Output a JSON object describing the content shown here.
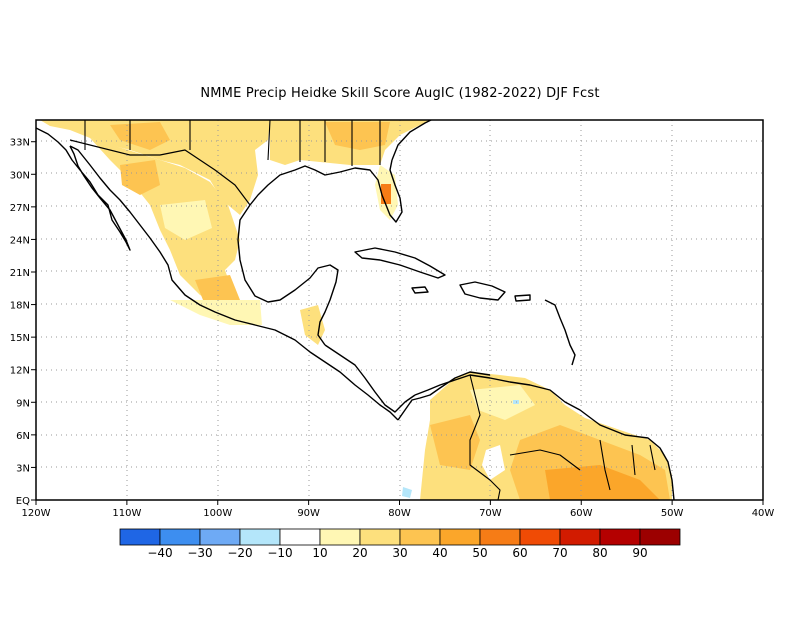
{
  "title": "NMME Precip Heidke Skill Score AugIC (1982-2022) DJF Fcst",
  "map": {
    "lon_range": [
      -120,
      -40
    ],
    "lat_range": [
      0,
      35
    ],
    "x_ticks": [
      "120W",
      "110W",
      "100W",
      "90W",
      "80W",
      "70W",
      "60W",
      "50W",
      "40W"
    ],
    "y_ticks": [
      "EQ",
      "3N",
      "6N",
      "9N",
      "12N",
      "15N",
      "18N",
      "21N",
      "24N",
      "27N",
      "30N",
      "33N"
    ],
    "grid": "dotted"
  },
  "legend": {
    "labels": [
      "-40",
      "-30",
      "-20",
      "-10",
      "10",
      "20",
      "30",
      "40",
      "50",
      "60",
      "70",
      "80",
      "90"
    ],
    "colors": [
      "#1f66e5",
      "#3d8ef0",
      "#6eaaf5",
      "#b4e6fa",
      "#ffffff",
      "#fff7b4",
      "#fde07d",
      "#fdc451",
      "#fba62a",
      "#f67c16",
      "#f04b05",
      "#d21b00",
      "#b40000",
      "#9c0000"
    ]
  }
}
